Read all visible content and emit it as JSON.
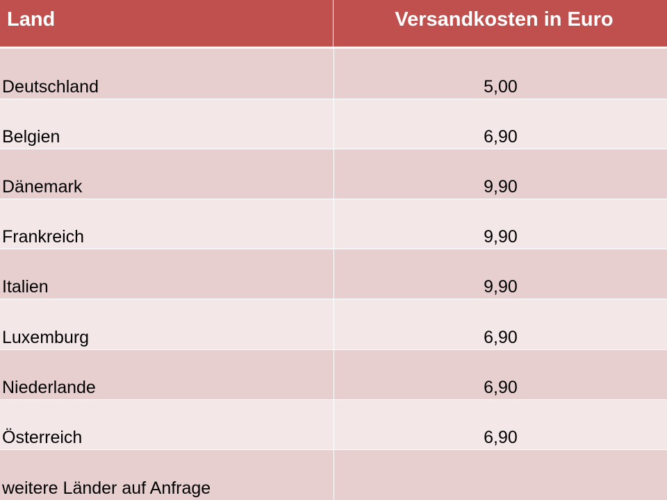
{
  "table": {
    "header": {
      "land": "Land",
      "cost": "Versandkosten in Euro"
    },
    "rows": [
      {
        "land": "Deutschland",
        "cost": "5,00"
      },
      {
        "land": "Belgien",
        "cost": "6,90"
      },
      {
        "land": "Dänemark",
        "cost": "9,90"
      },
      {
        "land": "Frankreich",
        "cost": "9,90"
      },
      {
        "land": "Italien",
        "cost": "9,90"
      },
      {
        "land": "Luxemburg",
        "cost": "6,90"
      },
      {
        "land": "Niederlande",
        "cost": "6,90"
      },
      {
        "land": "Österreich",
        "cost": "6,90"
      },
      {
        "land": "weitere Länder auf Anfrage",
        "cost": ""
      }
    ]
  },
  "colors": {
    "header": "#c0504d",
    "row_odd": "#e8cfcf",
    "row_even": "#f4e7e8"
  }
}
